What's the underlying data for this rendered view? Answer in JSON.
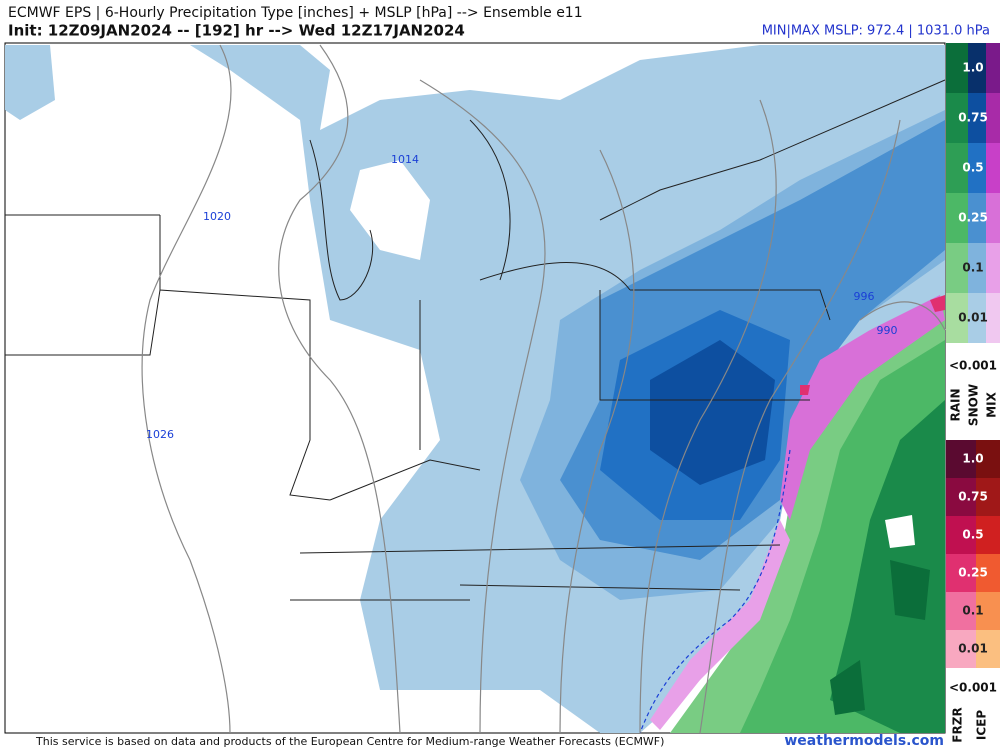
{
  "header": {
    "title": "ECMWF EPS | 6-Hourly Precipitation Type [inches] + MSLP [hPa] --> Ensemble e11",
    "init": "Init: 12Z09JAN2024 -- [192] hr --> Wed 12Z17JAN2024",
    "minmax": "MIN|MAX MSLP: 972.4 | 1031.0 hPa"
  },
  "map": {
    "isobar_labels": [
      "1014",
      "1020",
      "1026",
      "996",
      "990"
    ]
  },
  "legend": {
    "upper": {
      "levels": [
        "1.0",
        "0.75",
        "0.5",
        "0.25",
        "0.1",
        "0.01"
      ],
      "below": "<0.001",
      "types": [
        "RAIN",
        "SNOW",
        "MIX"
      ]
    },
    "lower": {
      "levels": [
        "1.0",
        "0.75",
        "0.5",
        "0.25",
        "0.1",
        "0.01"
      ],
      "below": "<0.001",
      "types": [
        "FRZR",
        "ICEP"
      ]
    }
  },
  "footer": {
    "notice": "This service is based on data and products of the European Centre for Medium-range Weather Forecasts (ECMWF)",
    "site": "weathermodels.com"
  }
}
